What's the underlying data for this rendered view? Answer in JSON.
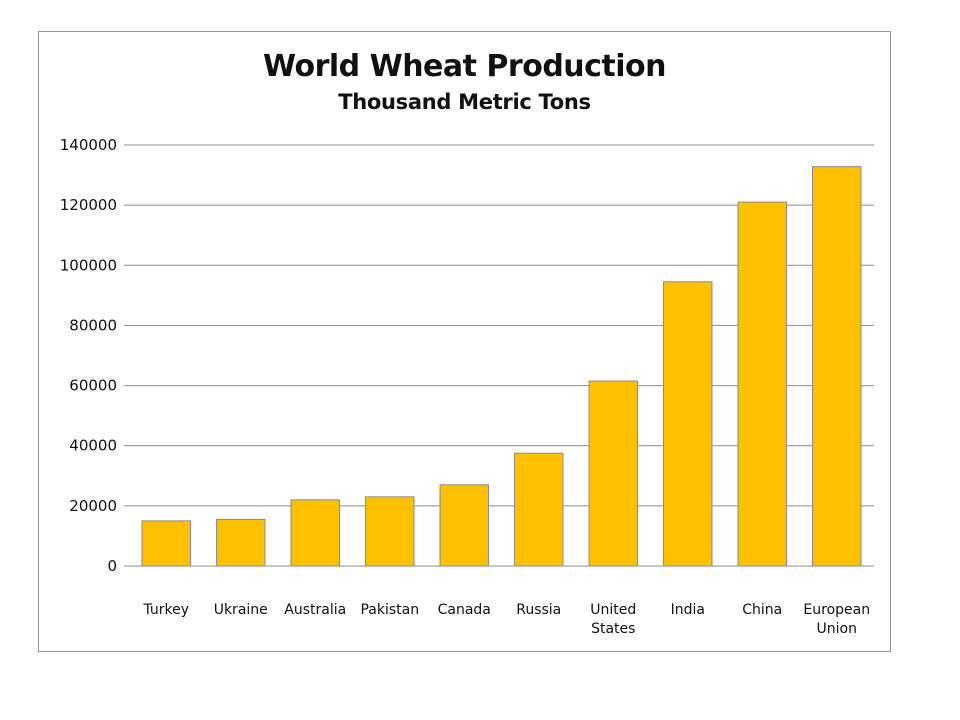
{
  "chart_data": {
    "type": "bar",
    "title": "World Wheat Production",
    "subtitle": "Thousand Metric Tons",
    "xlabel": "",
    "ylabel": "",
    "categories": [
      "Turkey",
      "Ukraine",
      "Australia",
      "Pakistan",
      "Canada",
      "Russia",
      "United States",
      "India",
      "China",
      "European Union"
    ],
    "category_label_lines": [
      [
        "Turkey"
      ],
      [
        "Ukraine"
      ],
      [
        "Australia"
      ],
      [
        "Pakistan"
      ],
      [
        "Canada"
      ],
      [
        "Russia"
      ],
      [
        "United",
        "States"
      ],
      [
        "India"
      ],
      [
        "China"
      ],
      [
        "European",
        "Union"
      ]
    ],
    "values": [
      15000,
      15500,
      22000,
      23000,
      27000,
      37500,
      61500,
      94500,
      121000,
      132800
    ],
    "ylim": [
      0,
      140000
    ],
    "yticks": [
      0,
      20000,
      40000,
      60000,
      80000,
      100000,
      120000,
      140000
    ],
    "grid": true,
    "legend": "none",
    "colors": {
      "bar_fill": "#FFC000",
      "bar_stroke": "#8a8a8a",
      "grid": "#8c8c8c"
    }
  }
}
